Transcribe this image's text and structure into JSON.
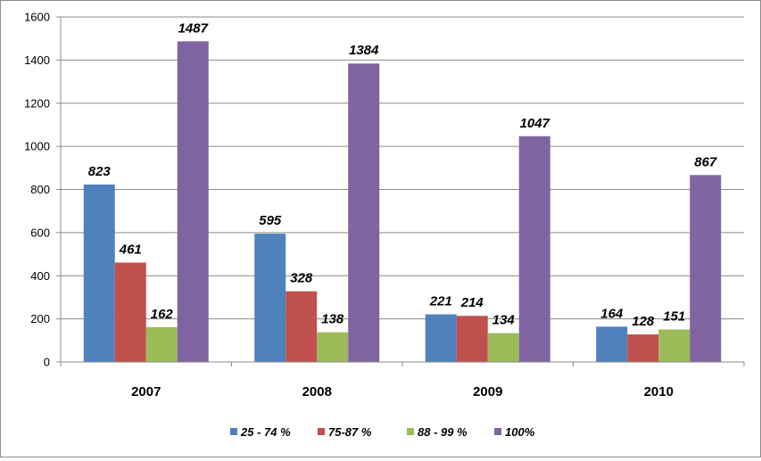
{
  "chart_data": {
    "type": "bar",
    "title": "",
    "xlabel": "",
    "ylabel": "",
    "categories": [
      "2007",
      "2008",
      "2009",
      "2010"
    ],
    "series": [
      {
        "name": "25 - 74 %",
        "color": "#4F81BD",
        "values": [
          823,
          595,
          221,
          164
        ]
      },
      {
        "name": "75-87 %",
        "color": "#C0504D",
        "values": [
          461,
          328,
          214,
          128
        ]
      },
      {
        "name": "88 - 99 %",
        "color": "#9BBB59",
        "values": [
          162,
          138,
          134,
          151
        ]
      },
      {
        "name": "100%",
        "color": "#8064A2",
        "values": [
          1487,
          1384,
          1047,
          867
        ]
      }
    ],
    "ylim": [
      0,
      1600
    ],
    "yticks": [
      0,
      200,
      400,
      600,
      800,
      1000,
      1200,
      1400,
      1600
    ],
    "grid": true,
    "legend": "bottom",
    "data_labels": true
  }
}
